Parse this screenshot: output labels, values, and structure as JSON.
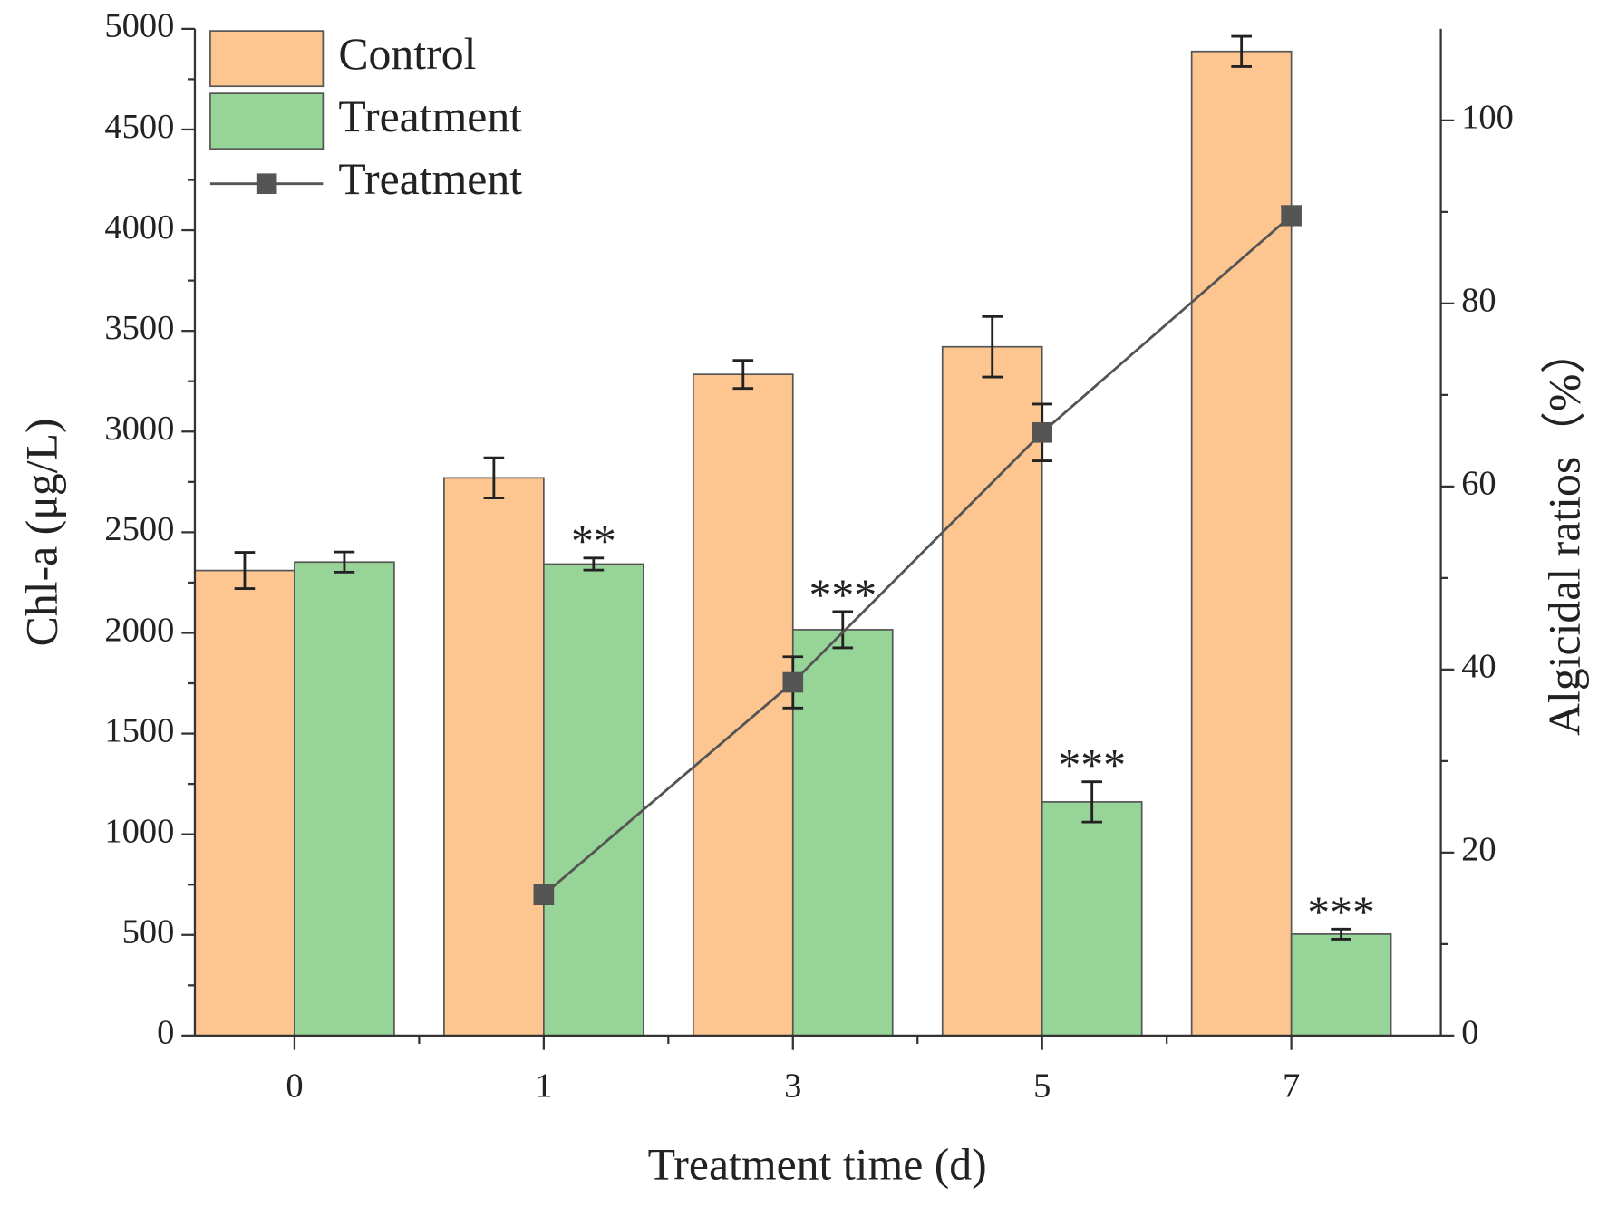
{
  "chart_data": {
    "type": "bar",
    "x_label": "Treatment time (d)",
    "y_label": "Chl-a (μg/L)",
    "y2_label": "Algicidal ratios（%）",
    "categories": [
      "0",
      "1",
      "3",
      "5",
      "7"
    ],
    "ylim": [
      0,
      5000
    ],
    "yticks": [
      0,
      500,
      1000,
      1500,
      2000,
      2500,
      3000,
      3500,
      4000,
      4500,
      5000
    ],
    "y2lim": [
      0,
      110
    ],
    "y2ticks": [
      0,
      20,
      40,
      60,
      80,
      100
    ],
    "series": [
      {
        "name": "Control",
        "type": "bar",
        "color": "#fdc690",
        "values": [
          2310,
          2770,
          3284,
          3421,
          4888
        ],
        "errors": [
          90,
          100,
          70,
          150,
          75
        ]
      },
      {
        "name": "Treatment",
        "type": "bar",
        "color": "#97d498",
        "values": [
          2352,
          2342,
          2016,
          1161,
          504
        ],
        "errors": [
          50,
          30,
          90,
          100,
          25
        ]
      },
      {
        "name": "Treatment",
        "type": "line",
        "axis": "y2",
        "color": "#555555",
        "values": [
          null,
          15.4,
          38.6,
          65.9,
          89.6
        ],
        "errors": [
          null,
          1,
          2.8,
          3.1,
          1
        ]
      }
    ],
    "annotations": [
      {
        "text": "**",
        "category": "1"
      },
      {
        "text": "***",
        "category": "3"
      },
      {
        "text": "***",
        "category": "5"
      },
      {
        "text": "***",
        "category": "7"
      }
    ]
  }
}
